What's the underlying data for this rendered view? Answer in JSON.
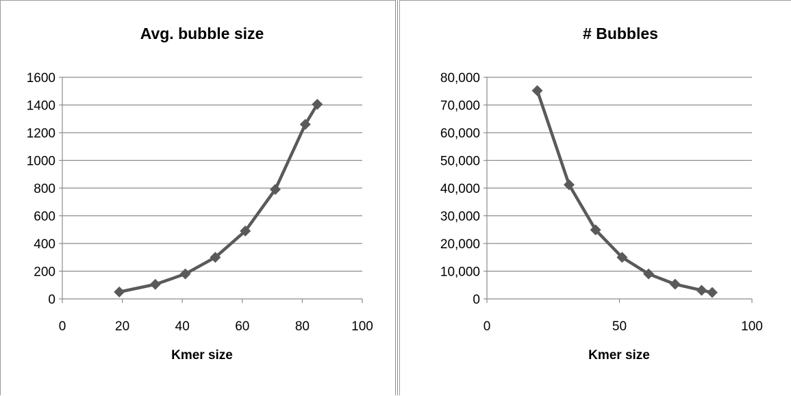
{
  "chart_data": [
    {
      "type": "line",
      "title": "Avg. bubble size",
      "xlabel": "Kmer size",
      "ylabel": "",
      "xlim": [
        0,
        100
      ],
      "ylim": [
        0,
        1600
      ],
      "x_ticks": [
        "0",
        "20",
        "40",
        "60",
        "80",
        "100"
      ],
      "y_ticks": [
        "0",
        "200",
        "400",
        "600",
        "800",
        "1000",
        "1200",
        "1400",
        "1600"
      ],
      "grid": true,
      "legend": "none",
      "series": [
        {
          "x": [
            19,
            31,
            41,
            51,
            61,
            71,
            81,
            85
          ],
          "y": [
            50,
            105,
            180,
            300,
            490,
            790,
            1260,
            1405
          ]
        }
      ]
    },
    {
      "type": "line",
      "title": "# Bubbles",
      "xlabel": "Kmer size",
      "ylabel": "",
      "xlim": [
        0,
        100
      ],
      "ylim": [
        0,
        80000
      ],
      "x_ticks": [
        "0",
        "50",
        "100"
      ],
      "y_ticks": [
        "0",
        "10,000",
        "20,000",
        "30,000",
        "40,000",
        "50,000",
        "60,000",
        "70,000",
        "80,000"
      ],
      "grid": true,
      "legend": "none",
      "series": [
        {
          "x": [
            19,
            31,
            41,
            51,
            61,
            71,
            81,
            85
          ],
          "y": [
            75200,
            41200,
            24900,
            15000,
            9000,
            5300,
            3100,
            2300
          ]
        }
      ]
    }
  ],
  "colors": {
    "series": "#5a5a5a",
    "grid": "#8c8c8c",
    "axis": "#8c8c8c"
  }
}
